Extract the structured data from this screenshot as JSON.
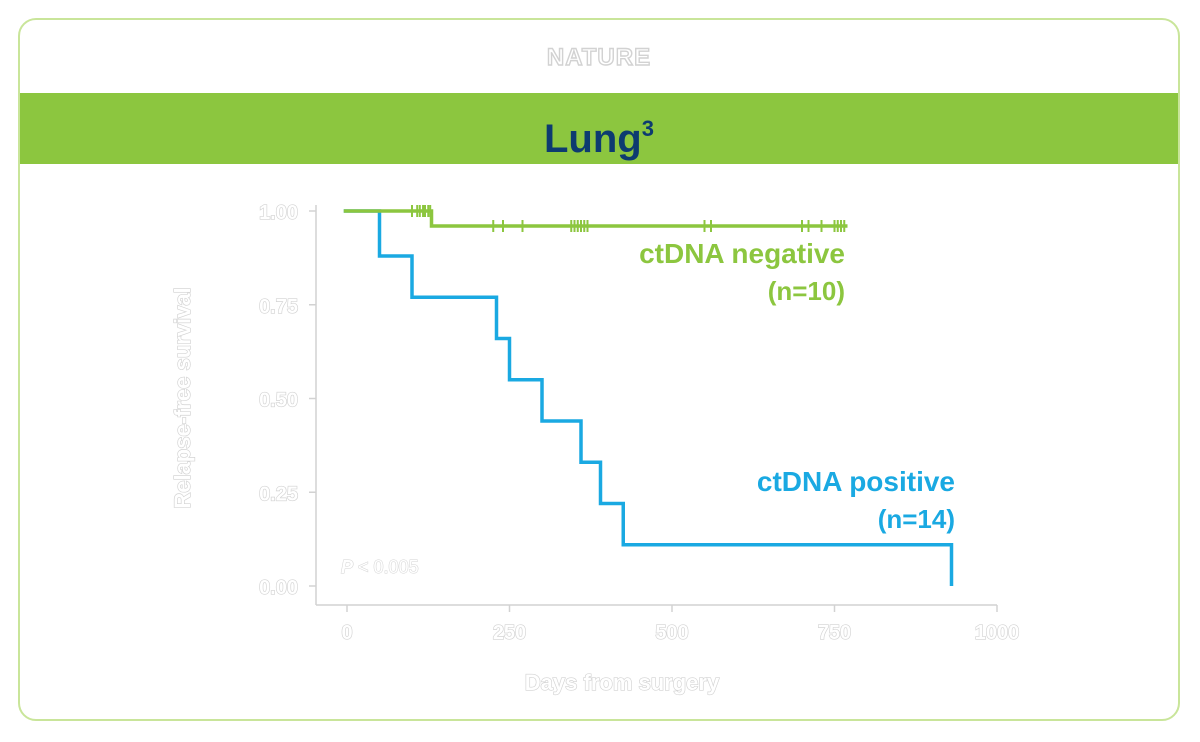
{
  "header": {
    "source": "NATURE",
    "title": "Lung",
    "title_superscript": "3"
  },
  "colors": {
    "banner": "#8cc63f",
    "title": "#0d3b70",
    "negative": "#8cc63f",
    "positive": "#1aa9e2",
    "axis": "#d2d2d2"
  },
  "chart_data": {
    "type": "line",
    "xlabel": "Days from surgery",
    "ylabel": "Relapse-free survival",
    "xlim": [
      0,
      1000
    ],
    "ylim": [
      0,
      1
    ],
    "xticks": [
      0,
      250,
      500,
      750,
      1000
    ],
    "xtick_labels": [
      "0",
      "250",
      "500",
      "750",
      "1000"
    ],
    "yticks": [
      0,
      0.25,
      0.5,
      0.75,
      1
    ],
    "ytick_labels": [
      "0.00",
      "0.25",
      "0.50",
      "0.75",
      "1.00"
    ],
    "annotation": {
      "p_symbol": "P",
      "p_text": " < 0.005"
    },
    "series": [
      {
        "name": "ctDNA negative",
        "n_label": "(n=10)",
        "color": "#8cc63f",
        "step_x": [
          -5,
          130,
          130,
          770
        ],
        "step_y": [
          1.0,
          1.0,
          0.96,
          0.96
        ],
        "censor_x": [
          100,
          108,
          112,
          117,
          120,
          125,
          128,
          225,
          240,
          270,
          345,
          350,
          355,
          360,
          365,
          370,
          550,
          560,
          700,
          710,
          730,
          750,
          755,
          760,
          765
        ],
        "censor_y": [
          1.0,
          1.0,
          1.0,
          1.0,
          1.0,
          1.0,
          1.0,
          0.96,
          0.96,
          0.96,
          0.96,
          0.96,
          0.96,
          0.96,
          0.96,
          0.96,
          0.96,
          0.96,
          0.96,
          0.96,
          0.96,
          0.96,
          0.96,
          0.96,
          0.96
        ]
      },
      {
        "name": "ctDNA positive",
        "n_label": "(n=14)",
        "color": "#1aa9e2",
        "step_x": [
          -5,
          50,
          50,
          100,
          100,
          230,
          230,
          250,
          250,
          300,
          300,
          360,
          360,
          390,
          390,
          425,
          425,
          930,
          930
        ],
        "step_y": [
          1.0,
          1.0,
          0.88,
          0.88,
          0.77,
          0.77,
          0.66,
          0.66,
          0.55,
          0.55,
          0.44,
          0.44,
          0.33,
          0.33,
          0.22,
          0.22,
          0.11,
          0.11,
          0.0
        ]
      }
    ]
  }
}
